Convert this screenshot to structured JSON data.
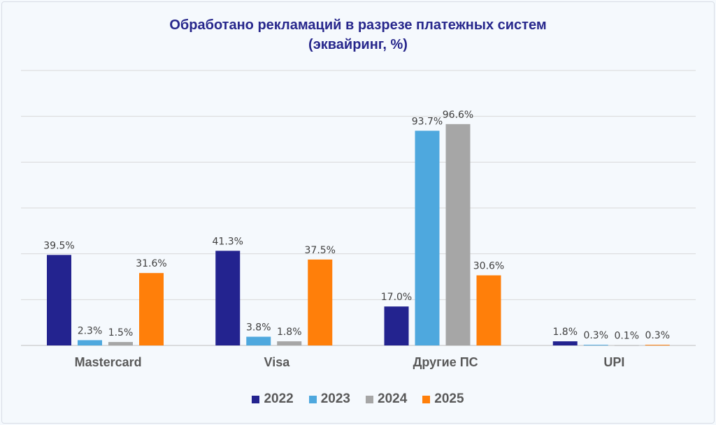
{
  "chart_data": {
    "type": "bar",
    "title_line1": "Обработано рекламаций в разрезе платежных систем",
    "title_line2": "(эквайринг, %)",
    "categories": [
      "Mastercard",
      "Visa",
      "Другие ПС",
      "UPI"
    ],
    "series": [
      {
        "name": "2022",
        "color": "#23238f",
        "values": [
          39.5,
          41.3,
          17.0,
          1.8
        ]
      },
      {
        "name": "2023",
        "color": "#4ea8de",
        "values": [
          2.3,
          3.8,
          93.7,
          0.3
        ]
      },
      {
        "name": "2024",
        "color": "#a6a6a6",
        "values": [
          1.5,
          1.8,
          96.6,
          0.1
        ]
      },
      {
        "name": "2025",
        "color": "#ff7f0a",
        "values": [
          31.6,
          37.5,
          30.6,
          0.3
        ]
      }
    ],
    "ylim": [
      0,
      120
    ],
    "gridlines": [
      0,
      20,
      40,
      60,
      80,
      100,
      120
    ],
    "grid": true,
    "legend_position": "bottom"
  }
}
